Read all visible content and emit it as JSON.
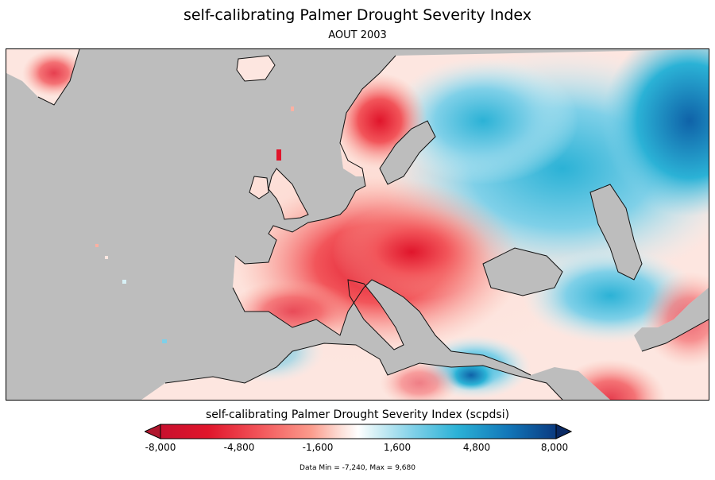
{
  "title": "self-calibrating Palmer Drought Severity Index",
  "subtitle": "AOUT 2003",
  "colorbar": {
    "label": "self-calibrating Palmer Drought Severity Index (scpdsi)",
    "ticks": [
      "-8,000",
      "-4,800",
      "-1,600",
      "1,600",
      "4,800",
      "8,000"
    ],
    "colors": [
      "#a50026",
      "#e0152b",
      "#f2555a",
      "#fb9b8c",
      "#fde3dc",
      "#ffffff",
      "#d8f1f6",
      "#7fd0e8",
      "#2bb2d6",
      "#1276b8",
      "#0a3a80"
    ],
    "under_color": "#b0172e",
    "over_color": "#0a2a64"
  },
  "data_range": "Data Min = -7,240, Max = 9,680",
  "map": {
    "region": "Europe",
    "missing_color": "#bdbdbd"
  }
}
